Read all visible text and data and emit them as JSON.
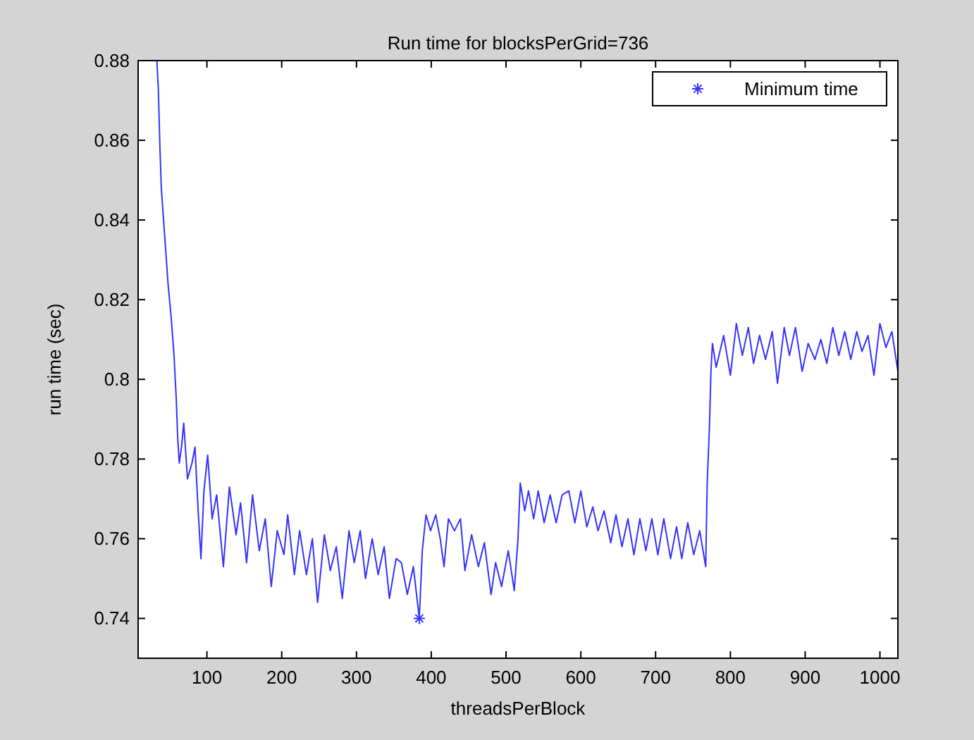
{
  "chart_data": {
    "type": "line",
    "title": "Run time for blocksPerGrid=736",
    "xlabel": "threadsPerBlock",
    "ylabel": "run time (sec)",
    "xlim": [
      8,
      1024
    ],
    "ylim": [
      0.73,
      0.88
    ],
    "xticks": [
      100,
      200,
      300,
      400,
      500,
      600,
      700,
      800,
      900,
      1000
    ],
    "yticks": [
      0.74,
      0.76,
      0.78,
      0.8,
      0.82,
      0.84,
      0.86,
      0.88
    ],
    "grid": false,
    "legend": "top right",
    "marker": "none",
    "series": [
      {
        "color": "#3333ff",
        "line_style": "solid",
        "x": [
          33,
          35,
          37,
          39,
          42,
          45,
          48,
          52,
          56,
          59,
          61,
          63,
          66,
          69,
          74,
          80,
          84,
          88,
          92,
          96,
          101,
          107,
          113,
          122,
          130,
          139,
          145,
          153,
          161,
          170,
          178,
          186,
          194,
          203,
          208,
          217,
          224,
          233,
          241,
          248,
          257,
          265,
          273,
          281,
          290,
          297,
          305,
          312,
          321,
          329,
          337,
          344,
          353,
          360,
          368,
          376,
          384,
          388,
          393,
          399,
          406,
          412,
          417,
          423,
          431,
          439,
          445,
          454,
          463,
          471,
          480,
          486,
          494,
          503,
          511,
          516,
          519,
          525,
          530,
          537,
          543,
          551,
          559,
          567,
          575,
          584,
          592,
          600,
          608,
          616,
          623,
          631,
          640,
          647,
          655,
          663,
          671,
          679,
          687,
          695,
          703,
          711,
          720,
          728,
          735,
          743,
          751,
          759,
          767,
          769,
          772,
          774,
          776,
          781,
          791,
          800,
          808,
          816,
          824,
          831,
          839,
          847,
          856,
          863,
          872,
          879,
          887,
          896,
          904,
          913,
          921,
          929,
          937,
          945,
          953,
          961,
          969,
          976,
          984,
          992,
          1000,
          1008,
          1016,
          1024
        ],
        "values": [
          0.88,
          0.873,
          0.859,
          0.848,
          0.84,
          0.832,
          0.824,
          0.816,
          0.806,
          0.795,
          0.785,
          0.779,
          0.783,
          0.789,
          0.775,
          0.779,
          0.783,
          0.768,
          0.755,
          0.772,
          0.781,
          0.765,
          0.771,
          0.753,
          0.773,
          0.761,
          0.769,
          0.754,
          0.771,
          0.757,
          0.765,
          0.748,
          0.762,
          0.756,
          0.766,
          0.751,
          0.762,
          0.751,
          0.76,
          0.744,
          0.761,
          0.752,
          0.758,
          0.745,
          0.762,
          0.754,
          0.762,
          0.75,
          0.76,
          0.751,
          0.758,
          0.745,
          0.755,
          0.754,
          0.746,
          0.753,
          0.74,
          0.757,
          0.766,
          0.762,
          0.766,
          0.76,
          0.753,
          0.765,
          0.762,
          0.765,
          0.752,
          0.761,
          0.753,
          0.759,
          0.746,
          0.754,
          0.748,
          0.757,
          0.747,
          0.76,
          0.774,
          0.767,
          0.772,
          0.765,
          0.772,
          0.764,
          0.771,
          0.764,
          0.771,
          0.772,
          0.764,
          0.772,
          0.763,
          0.768,
          0.762,
          0.767,
          0.759,
          0.766,
          0.758,
          0.765,
          0.756,
          0.765,
          0.757,
          0.765,
          0.756,
          0.765,
          0.755,
          0.763,
          0.755,
          0.764,
          0.756,
          0.762,
          0.753,
          0.774,
          0.788,
          0.802,
          0.809,
          0.803,
          0.811,
          0.801,
          0.814,
          0.806,
          0.813,
          0.804,
          0.811,
          0.805,
          0.812,
          0.799,
          0.813,
          0.806,
          0.813,
          0.802,
          0.809,
          0.805,
          0.81,
          0.804,
          0.813,
          0.806,
          0.812,
          0.805,
          0.812,
          0.807,
          0.811,
          0.801,
          0.814,
          0.808,
          0.812,
          0.802
        ]
      },
      {
        "type": "scatter",
        "name": "Minimum time",
        "color": "#3333ff",
        "marker": "cross",
        "x": [
          384
        ],
        "values": [
          0.74
        ]
      }
    ]
  }
}
